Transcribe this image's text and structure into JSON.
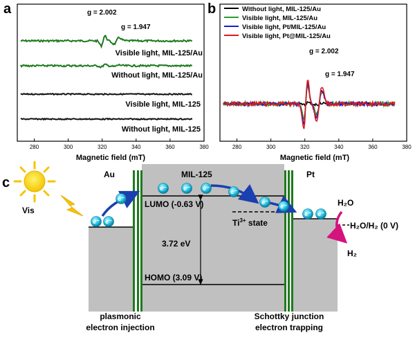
{
  "panels": {
    "a": "a",
    "b": "b",
    "c": "c"
  },
  "chart_data": [
    {
      "type": "line",
      "panel": "a",
      "xlabel": "Magnetic field (mT)",
      "ylabel": "",
      "xlim": [
        270,
        380
      ],
      "x_ticks": [
        "280",
        "300",
        "320",
        "340",
        "360",
        "380"
      ],
      "grid": false,
      "annotations": [
        "g = 2.002",
        "g = 1.947"
      ],
      "series": [
        {
          "name": "Visible light, MIL-125/Au",
          "color": "#1e7a1e"
        },
        {
          "name": "Without light, MIL-125/Au",
          "color": "#1e7a1e"
        },
        {
          "name": "Visible light, MIL-125",
          "color": "#111111"
        },
        {
          "name": "Without light, MIL-125",
          "color": "#111111"
        }
      ]
    },
    {
      "type": "line",
      "panel": "b",
      "xlabel": "Magnetic field (mT)",
      "ylabel": "",
      "xlim": [
        270,
        380
      ],
      "x_ticks": [
        "280",
        "300",
        "320",
        "340",
        "360",
        "380"
      ],
      "grid": false,
      "legend": "top-left",
      "annotations": [
        "g = 2.002",
        "g = 1.947"
      ],
      "series": [
        {
          "name": "Without light, MIL-125/Au",
          "color": "#000000"
        },
        {
          "name": "Visible light, MIL-125/Au",
          "color": "#2e9b2e"
        },
        {
          "name": "Visible light, Pt/MIL-125/Au",
          "color": "#1a1ad0"
        },
        {
          "name": "Visible light, Pt@MIL-125/Au",
          "color": "#e01a1a"
        }
      ]
    }
  ],
  "diagram": {
    "au": "Au",
    "mil": "MIL-125",
    "pt": "Pt",
    "vis": "Vis",
    "lumo": "LUMO (-0.63 V)",
    "homo": "HOMO (3.09 V)",
    "gap": "3.72 eV",
    "ti_state": "Ti",
    "ti_sup": "3+",
    "ti_rest": " state",
    "h2o": "H₂O",
    "redox": "H₂O/H₂ (0 V)",
    "h2": "H₂",
    "electron": "e⁻",
    "cap_left_1": "plasmonic",
    "cap_left_2": "electron injection",
    "cap_right_1": "Schottky junction",
    "cap_right_2": "electron trapping"
  }
}
